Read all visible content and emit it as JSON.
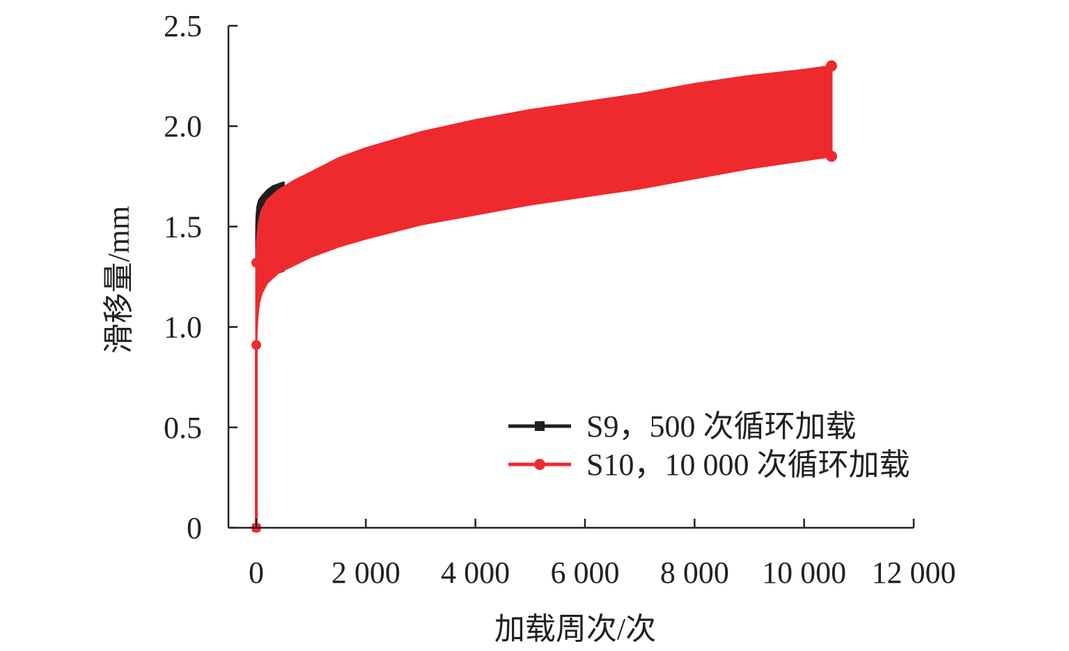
{
  "chart_data": {
    "type": "line",
    "title": "",
    "xlabel": "加载周次/次",
    "ylabel": "滑移量/mm",
    "xlim": [
      -500,
      12000
    ],
    "ylim": [
      0,
      2.5
    ],
    "xticks": [
      0,
      2000,
      4000,
      6000,
      8000,
      10000,
      12000
    ],
    "xtick_labels": [
      "0",
      "2 000",
      "4 000",
      "6 000",
      "8 000",
      "10 000",
      "12 000"
    ],
    "yticks": [
      0,
      0.5,
      1.0,
      1.5,
      2.0,
      2.5
    ],
    "ytick_labels": [
      "0",
      "0.5",
      "1.0",
      "1.5",
      "2.0",
      "2.5"
    ],
    "grid": false,
    "legend_position": "bottom-right",
    "colors": {
      "s9": "#231f20",
      "s10": "#ee2a2f",
      "axis": "#231f20"
    },
    "series": [
      {
        "name": "S9，500 次循环加载",
        "marker": "square",
        "upper": {
          "x": [
            0,
            5,
            20,
            50,
            100,
            200,
            300,
            400,
            500
          ],
          "y": [
            1.5,
            1.55,
            1.6,
            1.63,
            1.65,
            1.68,
            1.7,
            1.71,
            1.72
          ]
        },
        "lower": {
          "x": [
            0,
            5,
            20,
            50,
            100,
            200,
            300,
            400,
            500
          ],
          "y": [
            1.08,
            1.12,
            1.18,
            1.2,
            1.22,
            1.24,
            1.26,
            1.27,
            1.28
          ]
        }
      },
      {
        "name": "S10，10 000 次循环加载",
        "marker": "circle",
        "start": {
          "x": 0,
          "y": 0
        },
        "upper": {
          "x": [
            0,
            5,
            20,
            50,
            100,
            200,
            400,
            700,
            1000,
            1500,
            2000,
            3000,
            4000,
            5000,
            6000,
            7000,
            8000,
            9000,
            10000,
            10500
          ],
          "y": [
            1.32,
            1.38,
            1.45,
            1.52,
            1.58,
            1.63,
            1.68,
            1.73,
            1.77,
            1.84,
            1.89,
            1.97,
            2.03,
            2.08,
            2.12,
            2.16,
            2.21,
            2.25,
            2.28,
            2.3
          ]
        },
        "lower": {
          "x": [
            0,
            5,
            20,
            50,
            100,
            200,
            400,
            700,
            1000,
            1500,
            2000,
            3000,
            4000,
            5000,
            6000,
            7000,
            8000,
            9000,
            10000,
            10500
          ],
          "y": [
            0.91,
            0.97,
            1.05,
            1.12,
            1.17,
            1.22,
            1.27,
            1.31,
            1.35,
            1.4,
            1.44,
            1.51,
            1.56,
            1.61,
            1.65,
            1.69,
            1.74,
            1.79,
            1.83,
            1.85
          ]
        }
      }
    ]
  }
}
